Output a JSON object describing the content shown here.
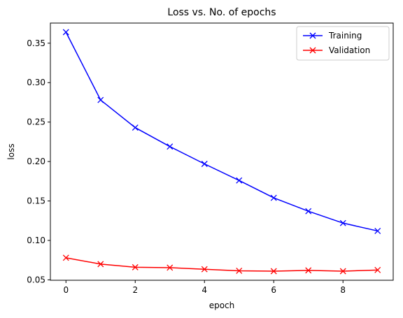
{
  "chart_data": {
    "type": "line",
    "title": "Loss vs. No. of epochs",
    "xlabel": "epoch",
    "ylabel": "loss",
    "x": [
      0,
      1,
      2,
      3,
      4,
      5,
      6,
      7,
      8,
      9
    ],
    "series": [
      {
        "name": "Training",
        "color": "#0000ff",
        "marker": "x",
        "values": [
          0.364,
          0.278,
          0.243,
          0.219,
          0.197,
          0.176,
          0.154,
          0.137,
          0.122,
          0.112
        ]
      },
      {
        "name": "Validation",
        "color": "#ff0000",
        "marker": "x",
        "values": [
          0.078,
          0.07,
          0.066,
          0.0655,
          0.0635,
          0.0615,
          0.061,
          0.062,
          0.061,
          0.0625
        ]
      }
    ],
    "xlim": [
      -0.45,
      9.45
    ],
    "ylim": [
      0.0495,
      0.3755
    ],
    "xticks": [
      0,
      2,
      4,
      6,
      8
    ],
    "yticks": [
      0.05,
      0.1,
      0.15,
      0.2,
      0.25,
      0.3,
      0.35
    ],
    "ytick_labels": [
      "0.05",
      "0.10",
      "0.15",
      "0.20",
      "0.25",
      "0.30",
      "0.35"
    ],
    "grid": false,
    "legend_position": "top-right"
  }
}
